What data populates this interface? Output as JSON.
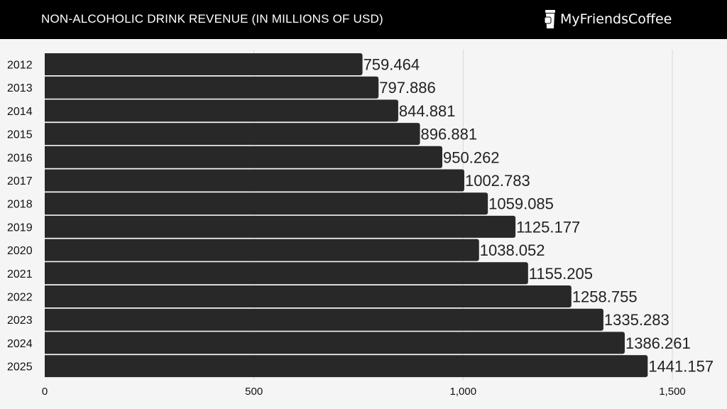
{
  "header": {
    "title": "NON-ALCOHOLIC DRINK REVENUE (IN MILLIONS OF USD)",
    "brand": "MyFriendsCoffee"
  },
  "chart_data": {
    "type": "bar",
    "orientation": "horizontal",
    "title": "NON-ALCOHOLIC DRINK REVENUE (IN MILLIONS OF USD)",
    "categories": [
      "2012",
      "2013",
      "2014",
      "2015",
      "2016",
      "2017",
      "2018",
      "2019",
      "2020",
      "2021",
      "2022",
      "2023",
      "2024",
      "2025"
    ],
    "values": [
      759.464,
      797.886,
      844.881,
      896.881,
      950.262,
      1002.783,
      1059.085,
      1125.177,
      1038.052,
      1155.205,
      1258.755,
      1335.283,
      1386.261,
      1441.157
    ],
    "labels": [
      "759.464",
      "797.886",
      "844.881",
      "896.881",
      "950.262",
      "1002.783",
      "1059.085",
      "1125.177",
      "1038.052",
      "1155.205",
      "1258.755",
      "1335.283",
      "1386.261",
      "1441.157"
    ],
    "xlim": [
      0,
      1500
    ],
    "xticks": [
      0,
      500,
      1000,
      1500
    ],
    "xtick_labels": [
      "0",
      "500",
      "1,000",
      "1,500"
    ],
    "grid": true,
    "bar_color": "#282828",
    "xlabel": "",
    "ylabel": ""
  }
}
